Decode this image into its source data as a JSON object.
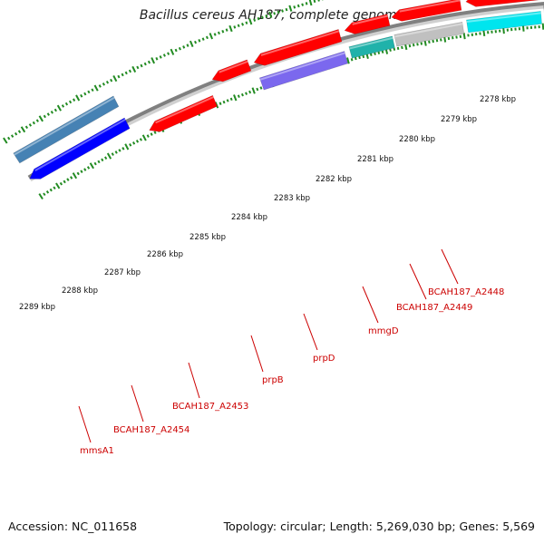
{
  "title": "Bacillus cereus AH187, complete genome",
  "accession": "Accession: NC_011658",
  "topology": "Topology: circular; Length: 5,269,030 bp; Genes: 5,569",
  "tick_labels": [
    "2278 kbp",
    "2279 kbp",
    "2280 kbp",
    "2281 kbp",
    "2282 kbp",
    "2283 kbp",
    "2284 kbp",
    "2285 kbp",
    "2286 kbp",
    "2287 kbp",
    "2288 kbp",
    "2289 kbp"
  ],
  "gene_labels": [
    "BCAH187_A2448",
    "BCAH187_A2449",
    "mmgD",
    "prpD",
    "prpB",
    "BCAH187_A2453",
    "BCAH187_A2454",
    "mmsA1"
  ],
  "colors": {
    "backbone": "#808080",
    "tick": "#228b22",
    "cds": "#ff0000",
    "label": "#cc0000",
    "olive": "#6b8e23",
    "cyan": "#00e5ee",
    "teal": "#20b2aa",
    "slate": "#7b68ee",
    "blue": "#0000ff",
    "steel": "#4682b4",
    "silver": "#c0c0c0",
    "darkgray": "#555555"
  }
}
